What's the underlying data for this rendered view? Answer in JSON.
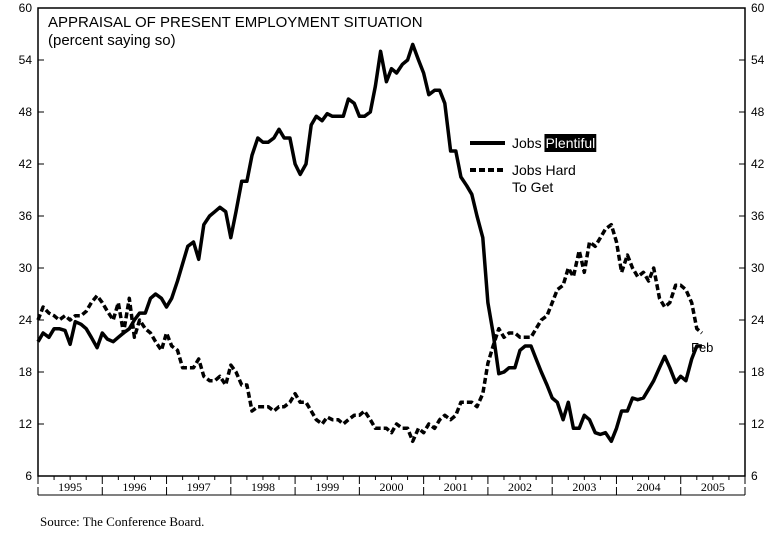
{
  "chart_data": {
    "type": "line",
    "title": "APPRAISAL OF PRESENT EMPLOYMENT SITUATION",
    "subtitle": "(percent saying so)",
    "source": "Source: The Conference Board.",
    "end_annotation": "Feb",
    "ylim": [
      6,
      60
    ],
    "y_ticks": [
      6,
      12,
      18,
      24,
      30,
      36,
      42,
      48,
      54,
      60
    ],
    "xlim": [
      1995.0,
      2006.0
    ],
    "x_ticks": [
      "1995",
      "1996",
      "1997",
      "1998",
      "1999",
      "2000",
      "2001",
      "2002",
      "2003",
      "2004",
      "2005"
    ],
    "legend": {
      "placement": "upper-right-center"
    },
    "series": [
      {
        "name": "Jobs Plentiful",
        "name_prefix": "Jobs ",
        "name_highlight": "Plentiful",
        "style": "solid",
        "color": "#000000",
        "points": [
          [
            1995.0,
            21.5
          ],
          [
            1995.08,
            22.5
          ],
          [
            1995.17,
            22.0
          ],
          [
            1995.25,
            23.0
          ],
          [
            1995.33,
            23.0
          ],
          [
            1995.42,
            22.8
          ],
          [
            1995.5,
            21.2
          ],
          [
            1995.58,
            23.8
          ],
          [
            1995.67,
            23.5
          ],
          [
            1995.75,
            23.0
          ],
          [
            1995.83,
            22.0
          ],
          [
            1995.92,
            20.8
          ],
          [
            1996.0,
            22.5
          ],
          [
            1996.08,
            21.8
          ],
          [
            1996.17,
            21.5
          ],
          [
            1996.25,
            22.0
          ],
          [
            1996.33,
            22.5
          ],
          [
            1996.42,
            23.0
          ],
          [
            1996.5,
            24.0
          ],
          [
            1996.58,
            24.8
          ],
          [
            1996.67,
            24.8
          ],
          [
            1996.75,
            26.5
          ],
          [
            1996.83,
            27.0
          ],
          [
            1996.92,
            26.5
          ],
          [
            1997.0,
            25.5
          ],
          [
            1997.08,
            26.5
          ],
          [
            1997.17,
            28.5
          ],
          [
            1997.25,
            30.5
          ],
          [
            1997.33,
            32.5
          ],
          [
            1997.42,
            33.0
          ],
          [
            1997.5,
            31.0
          ],
          [
            1997.58,
            35.0
          ],
          [
            1997.67,
            36.0
          ],
          [
            1997.75,
            36.5
          ],
          [
            1997.83,
            37.0
          ],
          [
            1997.92,
            36.5
          ],
          [
            1998.0,
            33.5
          ],
          [
            1998.08,
            36.5
          ],
          [
            1998.17,
            40.0
          ],
          [
            1998.25,
            40.0
          ],
          [
            1998.33,
            43.0
          ],
          [
            1998.42,
            45.0
          ],
          [
            1998.5,
            44.5
          ],
          [
            1998.58,
            44.5
          ],
          [
            1998.67,
            45.0
          ],
          [
            1998.75,
            46.0
          ],
          [
            1998.83,
            45.0
          ],
          [
            1998.92,
            45.0
          ],
          [
            1999.0,
            42.0
          ],
          [
            1999.08,
            40.8
          ],
          [
            1999.17,
            42.0
          ],
          [
            1999.25,
            46.5
          ],
          [
            1999.33,
            47.5
          ],
          [
            1999.42,
            47.0
          ],
          [
            1999.5,
            47.8
          ],
          [
            1999.58,
            47.5
          ],
          [
            1999.67,
            47.5
          ],
          [
            1999.75,
            47.5
          ],
          [
            1999.83,
            49.5
          ],
          [
            1999.92,
            49.0
          ],
          [
            2000.0,
            47.5
          ],
          [
            2000.08,
            47.5
          ],
          [
            2000.17,
            48.0
          ],
          [
            2000.25,
            51.0
          ],
          [
            2000.33,
            55.0
          ],
          [
            2000.42,
            51.5
          ],
          [
            2000.5,
            53.0
          ],
          [
            2000.58,
            52.5
          ],
          [
            2000.67,
            53.5
          ],
          [
            2000.75,
            54.0
          ],
          [
            2000.83,
            55.8
          ],
          [
            2000.92,
            54.0
          ],
          [
            2001.0,
            52.5
          ],
          [
            2001.08,
            50.0
          ],
          [
            2001.17,
            50.5
          ],
          [
            2001.25,
            50.5
          ],
          [
            2001.33,
            49.0
          ],
          [
            2001.42,
            43.5
          ],
          [
            2001.5,
            43.5
          ],
          [
            2001.58,
            40.5
          ],
          [
            2001.67,
            39.5
          ],
          [
            2001.75,
            38.5
          ],
          [
            2001.83,
            36.0
          ],
          [
            2001.92,
            33.5
          ],
          [
            2002.0,
            26.0
          ],
          [
            2002.08,
            22.5
          ],
          [
            2002.17,
            17.8
          ],
          [
            2002.25,
            18.0
          ],
          [
            2002.33,
            18.5
          ],
          [
            2002.42,
            18.5
          ],
          [
            2002.5,
            20.5
          ],
          [
            2002.58,
            21.0
          ],
          [
            2002.67,
            21.0
          ],
          [
            2002.75,
            19.5
          ],
          [
            2002.83,
            18.0
          ],
          [
            2002.92,
            16.5
          ],
          [
            2003.0,
            15.0
          ],
          [
            2003.08,
            14.5
          ],
          [
            2003.17,
            12.5
          ],
          [
            2003.25,
            14.5
          ],
          [
            2003.33,
            11.5
          ],
          [
            2003.42,
            11.5
          ],
          [
            2003.5,
            13.0
          ],
          [
            2003.58,
            12.5
          ],
          [
            2003.67,
            11.0
          ],
          [
            2003.75,
            10.8
          ],
          [
            2003.83,
            11.0
          ],
          [
            2003.92,
            10.0
          ],
          [
            2004.0,
            11.5
          ],
          [
            2004.08,
            13.5
          ],
          [
            2004.17,
            13.5
          ],
          [
            2004.25,
            15.0
          ],
          [
            2004.33,
            14.8
          ],
          [
            2004.42,
            15.0
          ],
          [
            2004.5,
            16.0
          ],
          [
            2004.58,
            17.0
          ],
          [
            2004.67,
            18.5
          ],
          [
            2004.75,
            19.8
          ],
          [
            2004.83,
            18.5
          ],
          [
            2004.92,
            16.8
          ],
          [
            2005.0,
            17.5
          ],
          [
            2005.08,
            17.0
          ],
          [
            2005.17,
            19.5
          ],
          [
            2005.25,
            21.0
          ],
          [
            2005.33,
            21.0
          ]
        ]
      },
      {
        "name": "Jobs Hard To Get",
        "name_lines": [
          "Jobs Hard",
          "To Get"
        ],
        "style": "dashed",
        "color": "#000000",
        "points": [
          [
            1995.0,
            24.0
          ],
          [
            1995.08,
            25.5
          ],
          [
            1995.17,
            24.8
          ],
          [
            1995.25,
            24.5
          ],
          [
            1995.33,
            24.0
          ],
          [
            1995.42,
            24.5
          ],
          [
            1995.5,
            24.0
          ],
          [
            1995.58,
            24.5
          ],
          [
            1995.67,
            24.5
          ],
          [
            1995.75,
            25.0
          ],
          [
            1995.83,
            26.0
          ],
          [
            1995.92,
            26.8
          ],
          [
            1996.0,
            26.0
          ],
          [
            1996.08,
            25.0
          ],
          [
            1996.17,
            24.0
          ],
          [
            1996.25,
            26.0
          ],
          [
            1996.33,
            22.5
          ],
          [
            1996.42,
            26.5
          ],
          [
            1996.5,
            22.0
          ],
          [
            1996.58,
            24.0
          ],
          [
            1996.67,
            23.0
          ],
          [
            1996.75,
            22.5
          ],
          [
            1996.83,
            21.5
          ],
          [
            1996.92,
            20.5
          ],
          [
            1997.0,
            22.5
          ],
          [
            1997.08,
            21.0
          ],
          [
            1997.17,
            20.5
          ],
          [
            1997.25,
            18.5
          ],
          [
            1997.33,
            18.5
          ],
          [
            1997.42,
            18.5
          ],
          [
            1997.5,
            19.5
          ],
          [
            1997.58,
            17.5
          ],
          [
            1997.67,
            17.0
          ],
          [
            1997.75,
            17.0
          ],
          [
            1997.83,
            17.5
          ],
          [
            1997.92,
            16.5
          ],
          [
            1998.0,
            18.8
          ],
          [
            1998.08,
            18.0
          ],
          [
            1998.17,
            16.5
          ],
          [
            1998.25,
            16.5
          ],
          [
            1998.33,
            13.5
          ],
          [
            1998.42,
            14.0
          ],
          [
            1998.5,
            14.0
          ],
          [
            1998.58,
            14.0
          ],
          [
            1998.67,
            13.5
          ],
          [
            1998.75,
            14.0
          ],
          [
            1998.83,
            14.0
          ],
          [
            1998.92,
            14.5
          ],
          [
            1999.0,
            15.5
          ],
          [
            1999.08,
            14.5
          ],
          [
            1999.17,
            14.5
          ],
          [
            1999.25,
            13.5
          ],
          [
            1999.33,
            12.5
          ],
          [
            1999.42,
            12.0
          ],
          [
            1999.5,
            12.8
          ],
          [
            1999.58,
            12.5
          ],
          [
            1999.67,
            12.5
          ],
          [
            1999.75,
            12.0
          ],
          [
            1999.83,
            12.5
          ],
          [
            1999.92,
            13.0
          ],
          [
            2000.0,
            13.0
          ],
          [
            2000.08,
            13.5
          ],
          [
            2000.17,
            12.5
          ],
          [
            2000.25,
            11.5
          ],
          [
            2000.33,
            11.5
          ],
          [
            2000.42,
            11.5
          ],
          [
            2000.5,
            11.0
          ],
          [
            2000.58,
            12.0
          ],
          [
            2000.67,
            11.5
          ],
          [
            2000.75,
            11.5
          ],
          [
            2000.83,
            10.0
          ],
          [
            2000.92,
            11.5
          ],
          [
            2001.0,
            11.0
          ],
          [
            2001.08,
            12.0
          ],
          [
            2001.17,
            11.5
          ],
          [
            2001.25,
            12.5
          ],
          [
            2001.33,
            13.0
          ],
          [
            2001.42,
            12.5
          ],
          [
            2001.5,
            13.0
          ],
          [
            2001.58,
            14.5
          ],
          [
            2001.67,
            14.5
          ],
          [
            2001.75,
            14.5
          ],
          [
            2001.83,
            14.0
          ],
          [
            2001.92,
            15.5
          ],
          [
            2002.0,
            19.0
          ],
          [
            2002.08,
            21.0
          ],
          [
            2002.17,
            23.0
          ],
          [
            2002.25,
            22.0
          ],
          [
            2002.33,
            22.5
          ],
          [
            2002.42,
            22.5
          ],
          [
            2002.5,
            22.0
          ],
          [
            2002.58,
            22.0
          ],
          [
            2002.67,
            22.0
          ],
          [
            2002.75,
            23.0
          ],
          [
            2002.83,
            24.0
          ],
          [
            2002.92,
            24.5
          ],
          [
            2003.0,
            26.0
          ],
          [
            2003.08,
            27.5
          ],
          [
            2003.17,
            28.0
          ],
          [
            2003.25,
            30.0
          ],
          [
            2003.33,
            29.0
          ],
          [
            2003.42,
            32.0
          ],
          [
            2003.5,
            29.5
          ],
          [
            2003.58,
            33.0
          ],
          [
            2003.67,
            32.5
          ],
          [
            2003.75,
            33.5
          ],
          [
            2003.83,
            34.5
          ],
          [
            2003.92,
            35.0
          ],
          [
            2004.0,
            33.0
          ],
          [
            2004.08,
            29.5
          ],
          [
            2004.17,
            31.5
          ],
          [
            2004.25,
            30.0
          ],
          [
            2004.33,
            29.0
          ],
          [
            2004.42,
            29.5
          ],
          [
            2004.5,
            28.5
          ],
          [
            2004.58,
            30.0
          ],
          [
            2004.67,
            26.5
          ],
          [
            2004.75,
            25.5
          ],
          [
            2004.83,
            26.0
          ],
          [
            2004.92,
            28.0
          ],
          [
            2005.0,
            28.0
          ],
          [
            2005.08,
            27.5
          ],
          [
            2005.17,
            26.0
          ],
          [
            2005.25,
            23.0
          ],
          [
            2005.33,
            22.5
          ]
        ]
      }
    ]
  }
}
